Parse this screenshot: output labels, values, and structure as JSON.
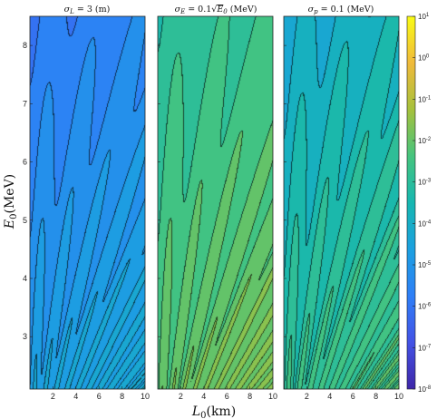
{
  "chart_data": {
    "type": "heatmap",
    "subtype": "filled-contour",
    "colormap": "parula",
    "color_scale": "log",
    "panels": [
      {
        "title_html": "σ<sub>L</sub> = 3 (m)",
        "title_text": "σ_L = 3 (m)",
        "peak_log10": -4.0,
        "min_log10": -7.0,
        "base_log10": -5.0
      },
      {
        "title_html": "σ<sub>E</sub> = 0.1√E<sub>0</sub> (MeV)",
        "title_text": "σ_E = 0.1√E_0 (MeV)",
        "peak_log10": -1.4,
        "min_log10": -4.0,
        "base_log10": -2.4
      },
      {
        "title_html": "σ<sub>p</sub> = 0.1 (MeV)",
        "title_text": "σ_p = 0.1 (MeV)",
        "peak_log10": -2.0,
        "min_log10": -5.5,
        "base_log10": -3.3
      }
    ],
    "x": {
      "label": "L0(km)",
      "range": [
        0,
        10
      ],
      "ticks": [
        "2",
        "4",
        "6",
        "8",
        "10"
      ]
    },
    "y": {
      "label": "E0(MeV)",
      "range": [
        2.1,
        8.5
      ],
      "ticks": [
        "3",
        "4",
        "5",
        "6",
        "7",
        "8"
      ]
    },
    "colorbar": {
      "range_log10": [
        -8,
        1
      ],
      "ticks": [
        "10^1",
        "10^0",
        "10^-1",
        "10^-2",
        "10^-3",
        "10^-4",
        "10^-5",
        "10^-6",
        "10^-7",
        "10^-8"
      ]
    },
    "grid": false,
    "legend": "none"
  }
}
